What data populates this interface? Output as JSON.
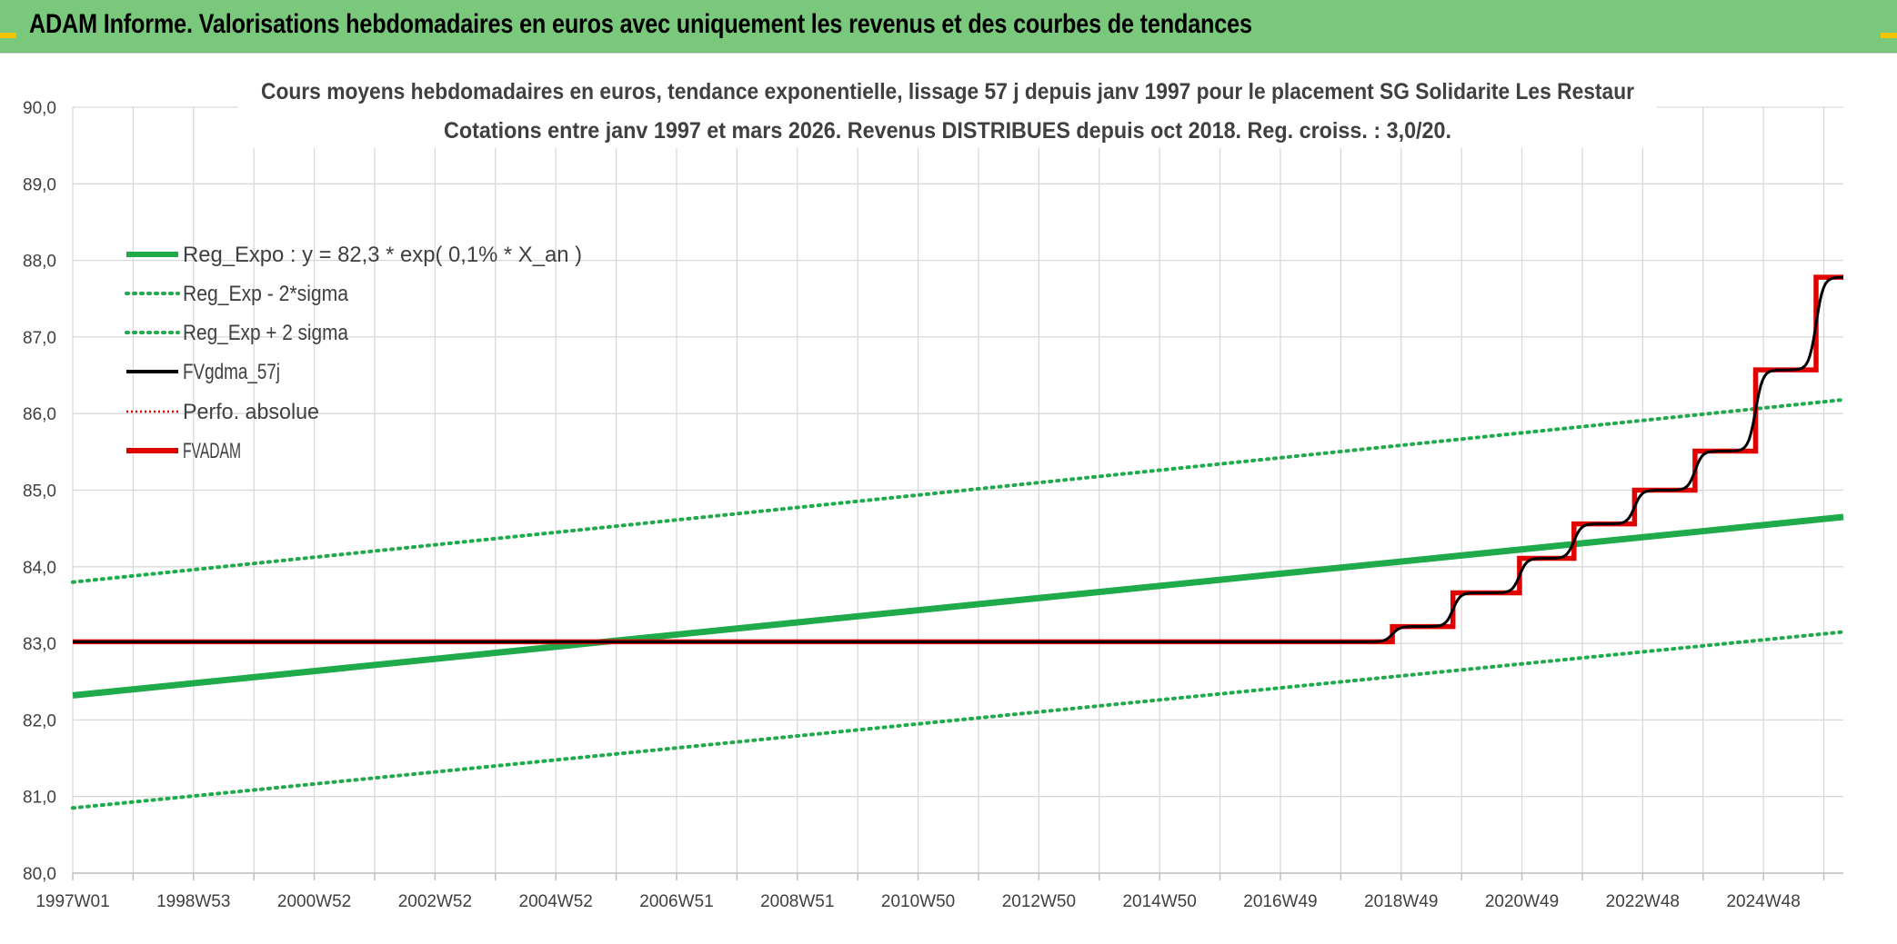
{
  "header": {
    "title": "ADAM Informe. Valorisations hebdomadaires en euros avec uniquement les revenus et des courbes de tendances"
  },
  "colors": {
    "header_bg": "#79c87c",
    "reg_expo": "#1faa4b",
    "sigma": "#1faa4b",
    "fvgdma": "#000000",
    "perfo": "#e00000",
    "fvadam": "#e00000",
    "grid": "#d9d9d9",
    "accent_corner": "#f2c400"
  },
  "chart_data": {
    "type": "line",
    "title": "Cours moyens hebdomadaires en euros, tendance exponentielle, lissage 57 j depuis janv 1997 pour le placement SG Solidarite Les Restaur",
    "subtitle": "Cotations entre janv 1997 et mars 2026. Revenus DISTRIBUES depuis oct 2018. Reg. croiss. : 3,0/20.",
    "xlabel": "",
    "ylabel": "",
    "ylim": [
      80.0,
      90.0
    ],
    "y_ticks": [
      "80,0",
      "81,0",
      "82,0",
      "83,0",
      "84,0",
      "85,0",
      "86,0",
      "87,0",
      "88,0",
      "89,0",
      "90,0"
    ],
    "x_ticks": [
      "1997W01",
      "1998W53",
      "2000W52",
      "2002W52",
      "2004W52",
      "2006W51",
      "2008W51",
      "2010W50",
      "2012W50",
      "2014W50",
      "2016W49",
      "2018W49",
      "2020W49",
      "2022W48",
      "2024W48"
    ],
    "x_start": 1997.0,
    "x_end": 2026.25,
    "grid": true,
    "legend_position": "top-left",
    "legend": [
      {
        "label": "Reg_Expo : y = 82,3 * exp( 0,1% *  X_an )",
        "style": "solid-thick",
        "color": "#1faa4b"
      },
      {
        "label": "Reg_Exp - 2*sigma",
        "style": "dotted",
        "color": "#1faa4b"
      },
      {
        "label": "Reg_Exp + 2 sigma",
        "style": "dotted",
        "color": "#1faa4b"
      },
      {
        "label": "FVgdma_57j",
        "style": "solid",
        "color": "#000000"
      },
      {
        "label": "Perfo. absolue",
        "style": "dotted-thin",
        "color": "#e00000"
      },
      {
        "label": "FVADAM",
        "style": "solid-thick",
        "color": "#e00000"
      }
    ],
    "series": [
      {
        "name": "Reg_Expo : y = 82,3 * exp( 0,1% *  X_an )",
        "x": [
          1997.0,
          2026.25
        ],
        "y": [
          82.32,
          84.65
        ]
      },
      {
        "name": "Reg_Exp - 2*sigma",
        "x": [
          1997.0,
          2026.25
        ],
        "y": [
          80.85,
          83.15
        ]
      },
      {
        "name": "Reg_Exp + 2 sigma",
        "x": [
          1997.0,
          2026.25
        ],
        "y": [
          83.8,
          86.18
        ]
      },
      {
        "name": "FVADAM",
        "x": [
          1997.0,
          2018.8,
          2018.8,
          2019.8,
          2019.8,
          2020.9,
          2020.9,
          2021.8,
          2021.8,
          2022.8,
          2022.8,
          2023.8,
          2023.8,
          2024.8,
          2024.8,
          2025.8,
          2025.8,
          2026.25
        ],
        "y": [
          83.02,
          83.02,
          83.22,
          83.22,
          83.66,
          83.66,
          84.11,
          84.11,
          84.56,
          84.56,
          85.0,
          85.0,
          85.51,
          85.51,
          86.57,
          86.57,
          87.78,
          87.78
        ]
      },
      {
        "name": "FVgdma_57j",
        "steps_x": [
          2018.8,
          2019.8,
          2020.9,
          2021.8,
          2022.8,
          2023.8,
          2024.8,
          2025.8
        ],
        "levels_y": [
          83.02,
          83.22,
          83.66,
          84.11,
          84.56,
          85.0,
          85.51,
          86.57,
          87.78
        ],
        "x_start": 1997.0,
        "x_end": 2026.25
      }
    ]
  }
}
